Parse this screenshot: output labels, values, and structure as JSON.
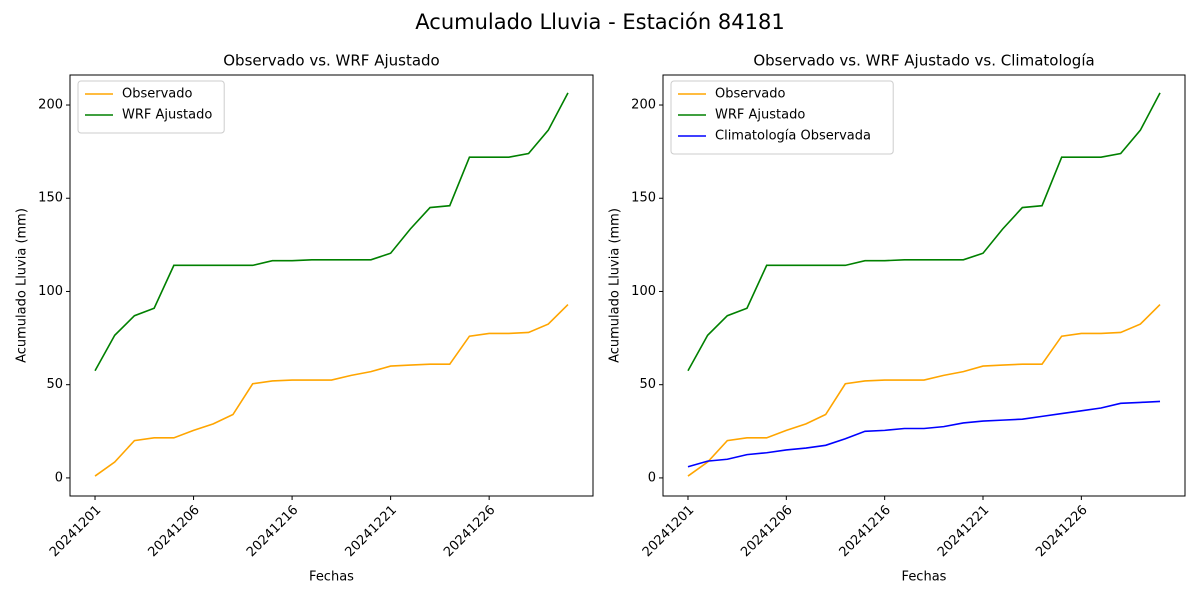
{
  "title": "Acumulado Lluvia - Estación 84181",
  "chart_data": [
    {
      "type": "line",
      "title": "Observado vs. WRF Ajustado",
      "xlabel": "Fechas",
      "ylabel": "Acumulado Lluvia (mm)",
      "categories": [
        "20241201",
        null,
        null,
        null,
        null,
        "20241206",
        null,
        null,
        null,
        null,
        "20241216",
        null,
        null,
        null,
        null,
        "20241221",
        null,
        null,
        null,
        null,
        "20241226",
        null,
        null,
        null,
        null
      ],
      "series": [
        {
          "name": "Observado",
          "color": "orange",
          "values": [
            1,
            8.5,
            20,
            21.5,
            21.5,
            25.5,
            29,
            34,
            50.5,
            52,
            52.5,
            52.5,
            52.5,
            55,
            57,
            60,
            60.5,
            61,
            61,
            76,
            77.5,
            77.5,
            78,
            82.5,
            93
          ]
        },
        {
          "name": "WRF Ajustado",
          "color": "green",
          "values": [
            57.5,
            76.5,
            87,
            91,
            114,
            114,
            114,
            114,
            114,
            116.5,
            116.5,
            117,
            117,
            117,
            117,
            120.5,
            133.5,
            145,
            146,
            172,
            172,
            172,
            174,
            186.5,
            206.5
          ]
        }
      ],
      "ylim": [
        -9.7,
        216.1
      ],
      "yticks": [
        0,
        50,
        100,
        150,
        200
      ],
      "legend": "upper left"
    },
    {
      "type": "line",
      "title": "Observado vs. WRF Ajustado vs. Climatología",
      "xlabel": "Fechas",
      "ylabel": "Acumulado Lluvia (mm)",
      "categories": [
        "20241201",
        null,
        null,
        null,
        null,
        "20241206",
        null,
        null,
        null,
        null,
        "20241216",
        null,
        null,
        null,
        null,
        "20241221",
        null,
        null,
        null,
        null,
        "20241226",
        null,
        null,
        null,
        null
      ],
      "series": [
        {
          "name": "Observado",
          "color": "orange",
          "values": [
            1,
            8.5,
            20,
            21.5,
            21.5,
            25.5,
            29,
            34,
            50.5,
            52,
            52.5,
            52.5,
            52.5,
            55,
            57,
            60,
            60.5,
            61,
            61,
            76,
            77.5,
            77.5,
            78,
            82.5,
            93
          ]
        },
        {
          "name": "WRF Ajustado",
          "color": "green",
          "values": [
            57.5,
            76.5,
            87,
            91,
            114,
            114,
            114,
            114,
            114,
            116.5,
            116.5,
            117,
            117,
            117,
            117,
            120.5,
            133.5,
            145,
            146,
            172,
            172,
            172,
            174,
            186.5,
            206.5
          ]
        },
        {
          "name": "Climatología Observada",
          "color": "blue",
          "values": [
            6,
            9,
            10,
            12.5,
            13.5,
            15,
            16,
            17.5,
            21,
            25,
            25.5,
            26.5,
            26.5,
            27.5,
            29.5,
            30.5,
            31,
            31.5,
            33,
            34.5,
            36,
            37.5,
            40,
            40.5,
            41
          ]
        }
      ],
      "ylim": [
        -9.7,
        216.1
      ],
      "yticks": [
        0,
        50,
        100,
        150,
        200
      ],
      "legend": "upper left"
    }
  ]
}
